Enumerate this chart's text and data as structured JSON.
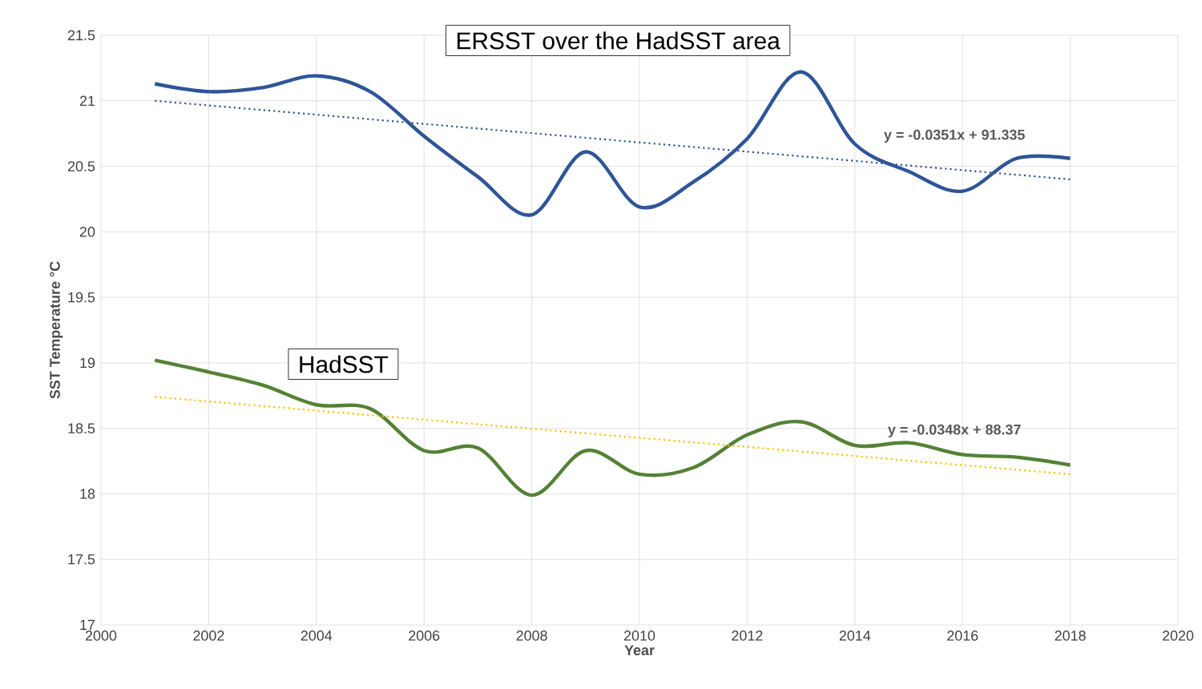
{
  "chart_data": {
    "type": "line",
    "xlabel": "Year",
    "ylabel": "SST Temperature °C",
    "xlim": [
      2000,
      2020
    ],
    "xticks": [
      2000,
      2002,
      2004,
      2006,
      2008,
      2010,
      2012,
      2014,
      2016,
      2018,
      2020
    ],
    "ylim": [
      17,
      21.5
    ],
    "yticks": [
      17,
      17.5,
      18,
      18.5,
      19,
      19.5,
      20,
      20.5,
      21,
      21.5
    ],
    "grid": true,
    "marker": "none",
    "series": [
      {
        "name": "ERSST over the HadSST area",
        "color": "#2f5597",
        "line_style": "solid",
        "x": [
          2001,
          2002,
          2003,
          2004,
          2005,
          2006,
          2007,
          2008,
          2009,
          2010,
          2011,
          2012,
          2013,
          2014,
          2015,
          2016,
          2017,
          2018
        ],
        "values": [
          21.13,
          21.07,
          21.1,
          21.19,
          21.07,
          20.73,
          20.42,
          20.13,
          20.61,
          20.19,
          20.38,
          20.71,
          21.22,
          20.67,
          20.46,
          20.31,
          20.56,
          20.56
        ]
      },
      {
        "name": "HadSST",
        "color": "#548235",
        "line_style": "solid",
        "x": [
          2001,
          2002,
          2003,
          2004,
          2005,
          2006,
          2007,
          2008,
          2009,
          2010,
          2011,
          2012,
          2013,
          2014,
          2015,
          2016,
          2017,
          2018
        ],
        "values": [
          19.02,
          18.93,
          18.83,
          18.68,
          18.65,
          18.33,
          18.35,
          17.99,
          18.33,
          18.15,
          18.2,
          18.45,
          18.55,
          18.37,
          18.39,
          18.3,
          18.28,
          18.22
        ]
      },
      {
        "type": "line",
        "color": "#2f5597",
        "line_style": "dotted",
        "x": [
          2001,
          2018
        ],
        "values": [
          21.0,
          20.4
        ]
      },
      {
        "type": "line",
        "color": "#ffc000",
        "line_style": "dotted",
        "x": [
          2001,
          2018
        ],
        "values": [
          18.74,
          18.15
        ]
      }
    ],
    "annotations": [
      "y = -0.0351x + 91.335",
      "y = -0.0348x + 88.37"
    ]
  }
}
